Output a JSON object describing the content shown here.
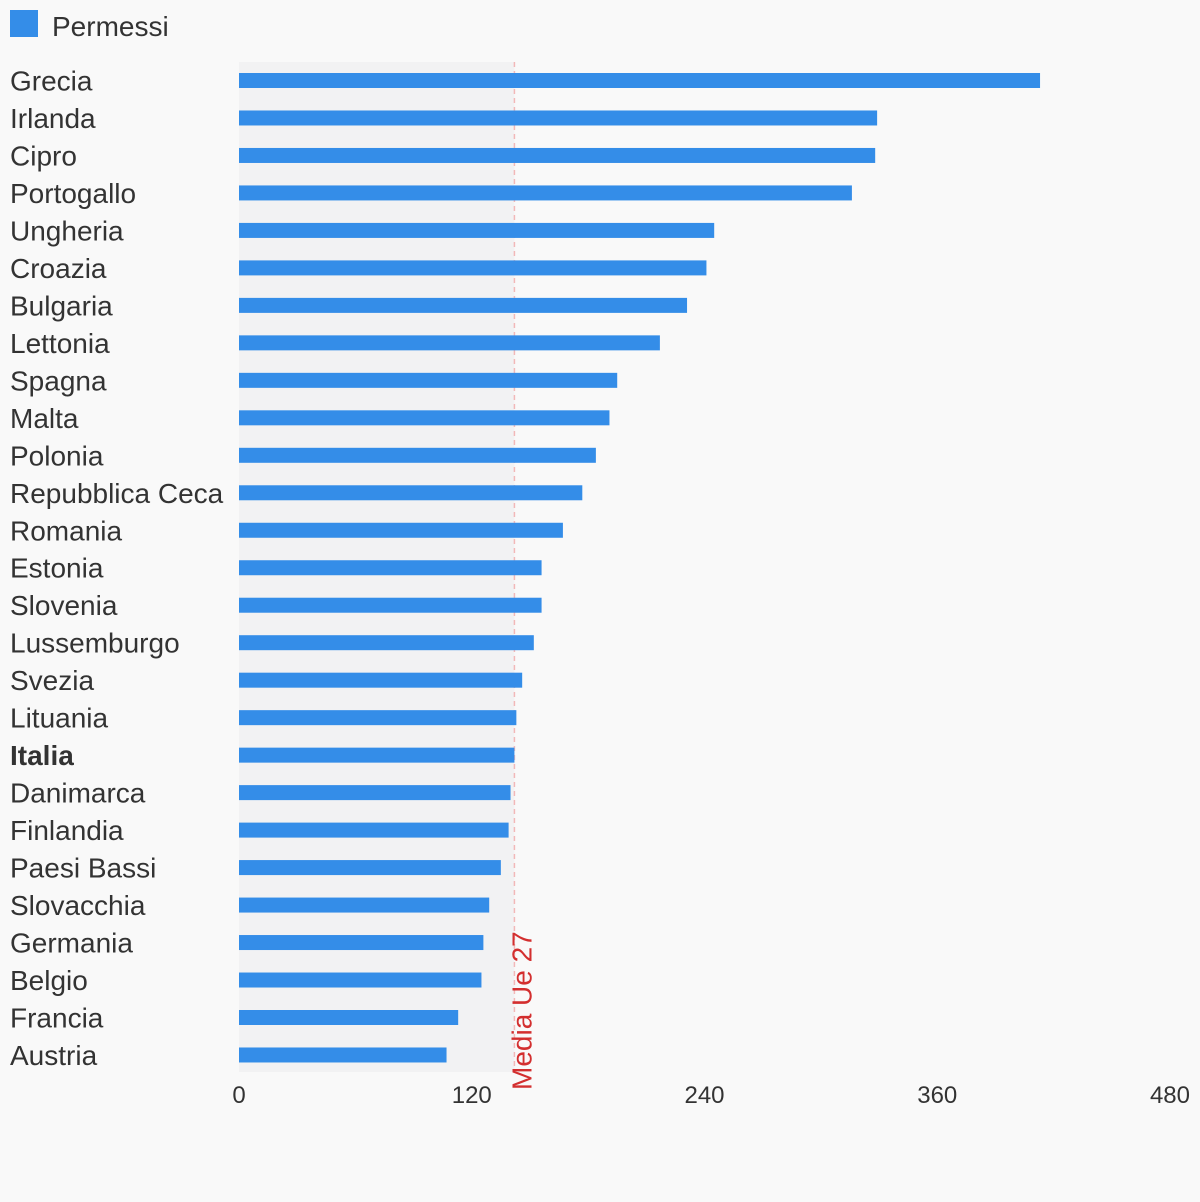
{
  "legend": {
    "label": "Permessi",
    "color": "#348de8"
  },
  "chart_data": {
    "type": "bar",
    "orientation": "horizontal",
    "categories": [
      "Grecia",
      "Irlanda",
      "Cipro",
      "Portogallo",
      "Ungheria",
      "Croazia",
      "Bulgaria",
      "Lettonia",
      "Spagna",
      "Malta",
      "Polonia",
      "Repubblica Ceca",
      "Romania",
      "Estonia",
      "Slovenia",
      "Lussemburgo",
      "Svezia",
      "Lituania",
      "Italia",
      "Danimarca",
      "Finlandia",
      "Paesi Bassi",
      "Slovacchia",
      "Germania",
      "Belgio",
      "Francia",
      "Austria"
    ],
    "highlight_category": "Italia",
    "series": [
      {
        "name": "Permessi",
        "color": "#348de8",
        "values": [
          413,
          329,
          328,
          316,
          245,
          241,
          231,
          217,
          195,
          191,
          184,
          177,
          167,
          156,
          156,
          152,
          146,
          143,
          142,
          140,
          139,
          135,
          129,
          126,
          125,
          113,
          107
        ]
      }
    ],
    "xlim": [
      0,
      480
    ],
    "x_ticks": [
      0,
      120,
      240,
      360,
      480
    ],
    "reference_line": {
      "label": "Media Ue 27",
      "value": 142,
      "color": "#d32f2f"
    },
    "grid": false,
    "legend_position": "top-left"
  }
}
